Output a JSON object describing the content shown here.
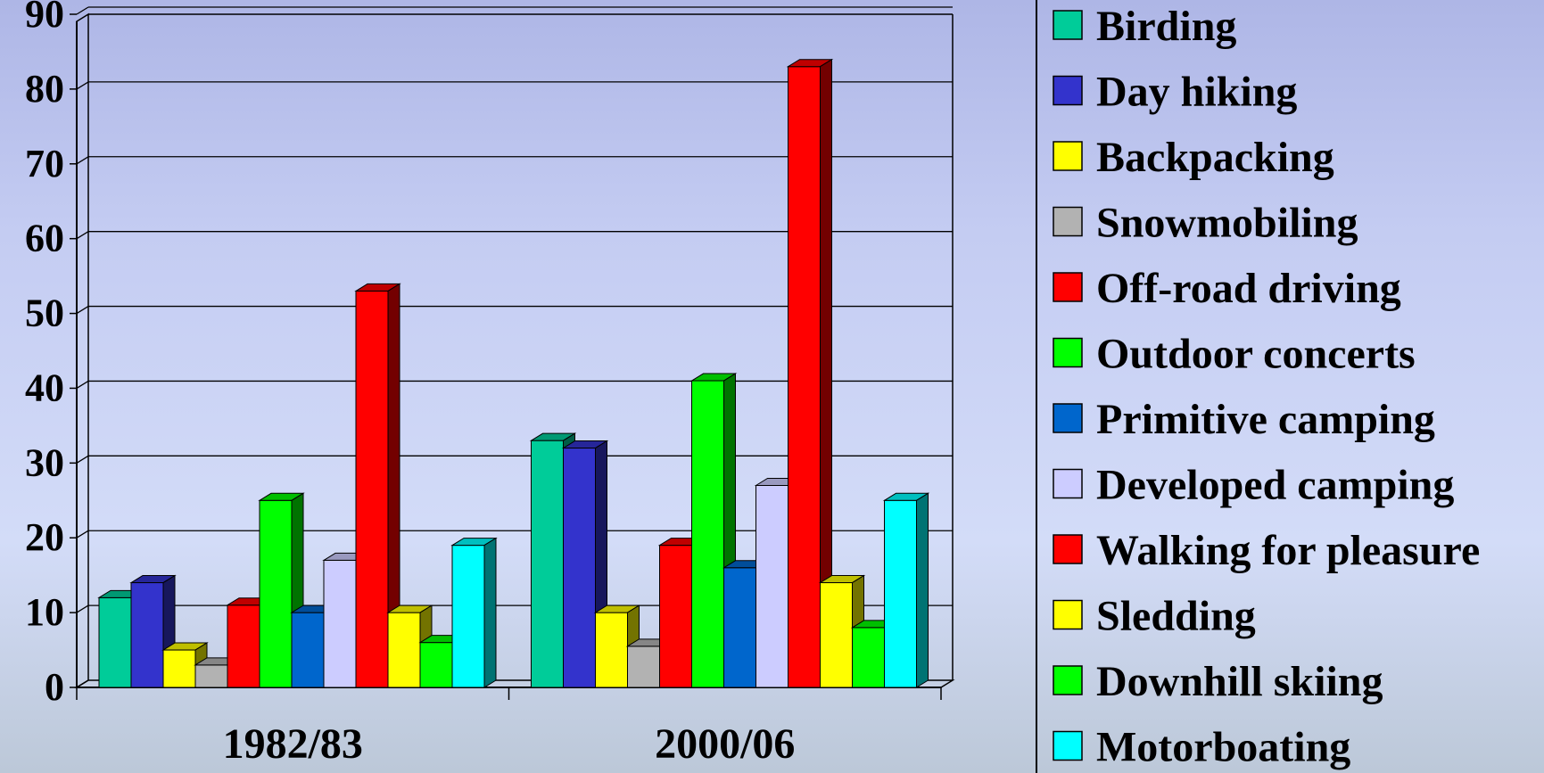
{
  "chart_data": {
    "type": "bar",
    "style": "3d-clustered-column",
    "categories": [
      "1982/83",
      "2000/06"
    ],
    "ylim": [
      0,
      90
    ],
    "yticks": [
      0,
      10,
      20,
      30,
      40,
      50,
      60,
      70,
      80,
      90
    ],
    "grid": true,
    "legend_position": "right",
    "series": [
      {
        "name": "Birding",
        "color": "#00CC99",
        "values": [
          12,
          33
        ]
      },
      {
        "name": "Day hiking",
        "color": "#3333CC",
        "values": [
          14,
          32
        ]
      },
      {
        "name": "Backpacking",
        "color": "#FFFF00",
        "values": [
          5,
          10
        ]
      },
      {
        "name": "Snowmobiling",
        "color": "#B2B2B2",
        "values": [
          3,
          5.5
        ]
      },
      {
        "name": "Off-road driving",
        "color": "#FF0000",
        "values": [
          11,
          19
        ]
      },
      {
        "name": "Outdoor concerts",
        "color": "#00FF00",
        "values": [
          25,
          41
        ]
      },
      {
        "name": "Primitive camping",
        "color": "#0066CC",
        "values": [
          10,
          16
        ]
      },
      {
        "name": "Developed camping",
        "color": "#CCCCFF",
        "values": [
          17,
          27
        ]
      },
      {
        "name": "Walking for pleasure",
        "color": "#FF0000",
        "values": [
          53,
          83
        ]
      },
      {
        "name": "Sledding",
        "color": "#FFFF00",
        "values": [
          10,
          14
        ]
      },
      {
        "name": "Downhill skiing",
        "color": "#00FF00",
        "values": [
          6,
          8
        ]
      },
      {
        "name": "Motorboating",
        "color": "#00FFFF",
        "values": [
          19,
          25
        ]
      }
    ]
  }
}
